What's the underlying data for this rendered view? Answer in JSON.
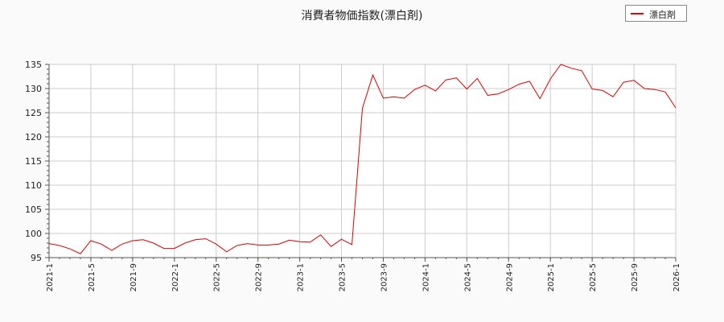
{
  "chart_data": {
    "type": "line",
    "title": "消費者物価指数(漂白剤)",
    "xlabel": "",
    "ylabel": "",
    "ylim": [
      95,
      135
    ],
    "yticks": [
      95,
      100,
      105,
      110,
      115,
      120,
      125,
      130,
      135
    ],
    "xticks": [
      "2021-1",
      "2021-5",
      "2021-9",
      "2022-1",
      "2022-5",
      "2022-9",
      "2023-1",
      "2023-5",
      "2023-9",
      "2024-1",
      "2024-5",
      "2024-9",
      "2025-1",
      "2025-5",
      "2025-9",
      "2026-1"
    ],
    "grid": true,
    "legend_position": "top-right",
    "series": [
      {
        "name": "漂白剤",
        "color": "#dd0000",
        "x": [
          "2021-1",
          "2021-2",
          "2021-3",
          "2021-4",
          "2021-5",
          "2021-6",
          "2021-7",
          "2021-8",
          "2021-9",
          "2021-10",
          "2021-11",
          "2021-12",
          "2022-1",
          "2022-2",
          "2022-3",
          "2022-4",
          "2022-5",
          "2022-6",
          "2022-7",
          "2022-8",
          "2022-9",
          "2022-10",
          "2022-11",
          "2022-12",
          "2023-1",
          "2023-2",
          "2023-3",
          "2023-4",
          "2023-5",
          "2023-6",
          "2023-7",
          "2023-8",
          "2023-9",
          "2023-10",
          "2023-11",
          "2023-12",
          "2024-1",
          "2024-2",
          "2024-3",
          "2024-4",
          "2024-5",
          "2024-6",
          "2024-7",
          "2024-8",
          "2024-9",
          "2024-10",
          "2024-11",
          "2024-12",
          "2025-1",
          "2025-2",
          "2025-3",
          "2025-4",
          "2025-5",
          "2025-6",
          "2025-7",
          "2025-8",
          "2025-9",
          "2025-10",
          "2025-11",
          "2025-12",
          "2026-1"
        ],
        "values": [
          97.9,
          97.5,
          96.8,
          95.8,
          98.5,
          97.8,
          96.5,
          97.8,
          98.5,
          98.7,
          98.0,
          96.9,
          96.9,
          98.0,
          98.7,
          98.9,
          97.8,
          96.2,
          97.5,
          97.9,
          97.6,
          97.6,
          97.8,
          98.6,
          98.3,
          98.2,
          99.7,
          97.3,
          98.8,
          97.7,
          125.9,
          132.8,
          128.0,
          128.3,
          128.0,
          129.8,
          130.7,
          129.5,
          131.8,
          132.2,
          129.9,
          132.1,
          128.6,
          128.9,
          129.8,
          130.9,
          131.5,
          127.9,
          132.0,
          135.0,
          134.2,
          133.7,
          129.9,
          129.6,
          128.3,
          131.3,
          131.7,
          130.0,
          129.8,
          129.3,
          126.0
        ]
      }
    ]
  }
}
